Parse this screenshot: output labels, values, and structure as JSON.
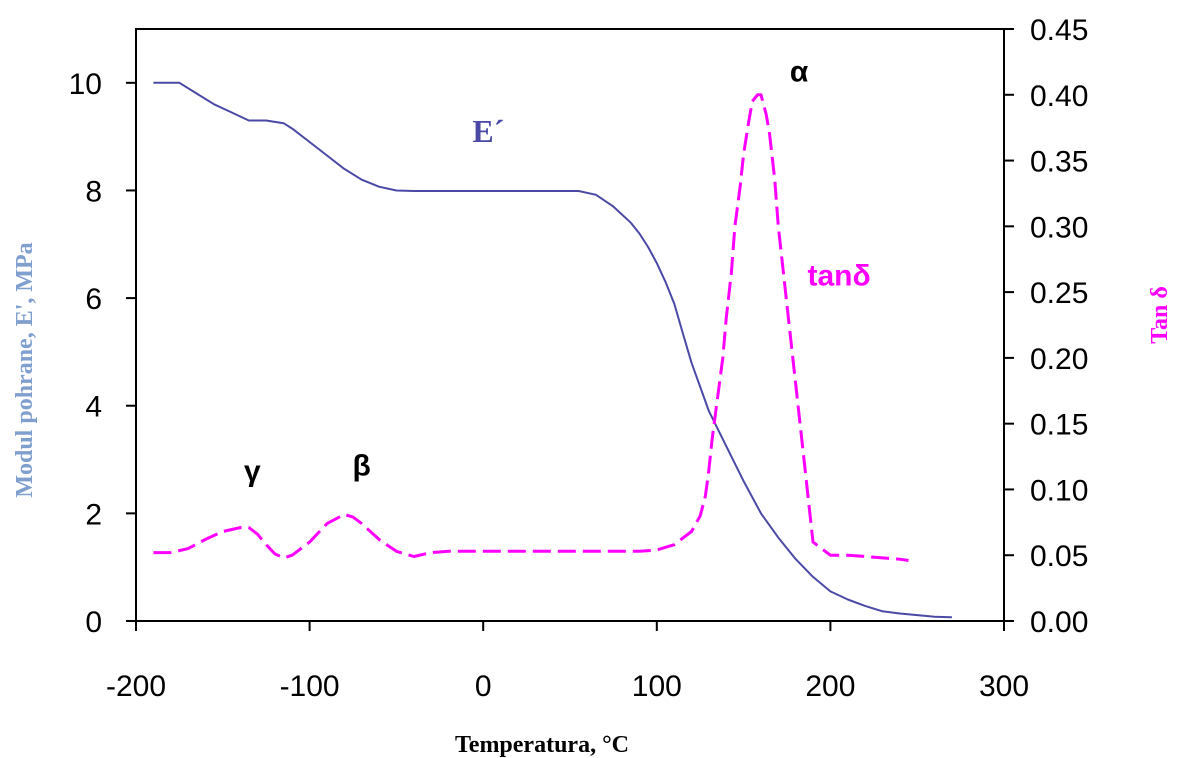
{
  "chart_data": {
    "type": "line",
    "xlabel": "Temperatura, °C",
    "ylabel_left": "Modul pohrane, E', MPa",
    "ylabel_right": "Tan δ",
    "xlim": [
      -200,
      300
    ],
    "ylim_left": [
      0,
      11
    ],
    "ylim_right": [
      0,
      0.45
    ],
    "x_ticks": [
      "-200",
      "-100",
      "0",
      "100",
      "200",
      "300"
    ],
    "y_left_ticks": [
      "0",
      "2",
      "4",
      "6",
      "8",
      "10"
    ],
    "y_right_ticks": [
      "0.00",
      "0.05",
      "0.10",
      "0.15",
      "0.20",
      "0.25",
      "0.30",
      "0.35",
      "0.40",
      "0.45"
    ],
    "grid": false,
    "series": [
      {
        "name": "E´",
        "axis": "left",
        "color": "#4a4aa6",
        "style": "solid",
        "x": [
          -190,
          -175,
          -165,
          -155,
          -145,
          -135,
          -125,
          -115,
          -110,
          -100,
          -90,
          -80,
          -70,
          -60,
          -50,
          -40,
          -20,
          0,
          20,
          40,
          55,
          65,
          75,
          85,
          90,
          95,
          100,
          105,
          110,
          115,
          120,
          125,
          130,
          140,
          150,
          160,
          170,
          180,
          190,
          200,
          210,
          220,
          230,
          240,
          250,
          260,
          270
        ],
        "values": [
          10.0,
          10.0,
          9.8,
          9.6,
          9.45,
          9.3,
          9.3,
          9.25,
          9.15,
          8.9,
          8.65,
          8.4,
          8.2,
          8.07,
          8.0,
          7.99,
          7.99,
          7.99,
          7.99,
          7.99,
          7.99,
          7.92,
          7.7,
          7.4,
          7.2,
          6.95,
          6.65,
          6.3,
          5.9,
          5.35,
          4.8,
          4.35,
          3.9,
          3.25,
          2.6,
          2.0,
          1.55,
          1.15,
          0.82,
          0.55,
          0.4,
          0.28,
          0.18,
          0.14,
          0.11,
          0.08,
          0.07
        ]
      },
      {
        "name": "tanδ",
        "axis": "right",
        "color": "#ff00ff",
        "style": "dashed",
        "x": [
          -190,
          -180,
          -170,
          -160,
          -150,
          -140,
          -135,
          -130,
          -125,
          -120,
          -115,
          -110,
          -100,
          -90,
          -80,
          -75,
          -70,
          -60,
          -50,
          -40,
          -30,
          -20,
          0,
          20,
          40,
          60,
          80,
          90,
          100,
          110,
          120,
          125,
          128,
          130,
          132,
          135,
          138,
          140,
          143,
          145,
          148,
          150,
          153,
          155,
          158,
          160,
          163,
          165,
          168,
          170,
          175,
          180,
          185,
          190,
          195,
          200,
          210,
          220,
          230,
          240,
          245
        ],
        "values": [
          0.052,
          0.052,
          0.055,
          0.062,
          0.068,
          0.071,
          0.071,
          0.066,
          0.058,
          0.051,
          0.048,
          0.05,
          0.06,
          0.074,
          0.081,
          0.079,
          0.074,
          0.062,
          0.053,
          0.049,
          0.052,
          0.053,
          0.053,
          0.053,
          0.053,
          0.053,
          0.053,
          0.053,
          0.054,
          0.058,
          0.068,
          0.08,
          0.095,
          0.115,
          0.14,
          0.17,
          0.2,
          0.23,
          0.265,
          0.3,
          0.33,
          0.355,
          0.38,
          0.395,
          0.4,
          0.4,
          0.385,
          0.37,
          0.335,
          0.3,
          0.24,
          0.18,
          0.12,
          0.06,
          0.055,
          0.05,
          0.05,
          0.049,
          0.048,
          0.047,
          0.046
        ]
      }
    ],
    "annotations": [
      {
        "text": "γ",
        "x": -133,
        "y": 2.6,
        "axis": "left",
        "style": "annot"
      },
      {
        "text": "β",
        "x": -70,
        "y": 2.7,
        "axis": "left",
        "style": "annot"
      },
      {
        "text": "α",
        "x": 182,
        "y": 0.41,
        "axis": "right",
        "style": "annot"
      },
      {
        "text": "E´",
        "x": 3,
        "y": 8.9,
        "axis": "left",
        "style": "annot-e",
        "color": "#4a4aa6"
      },
      {
        "text": "tanδ",
        "x": 205,
        "y": 0.255,
        "axis": "right",
        "style": "annot-tan",
        "color": "#ff00ff"
      }
    ],
    "ylabel_left_color": "#7f9fcf",
    "ylabel_right_color": "#ff00ff"
  }
}
